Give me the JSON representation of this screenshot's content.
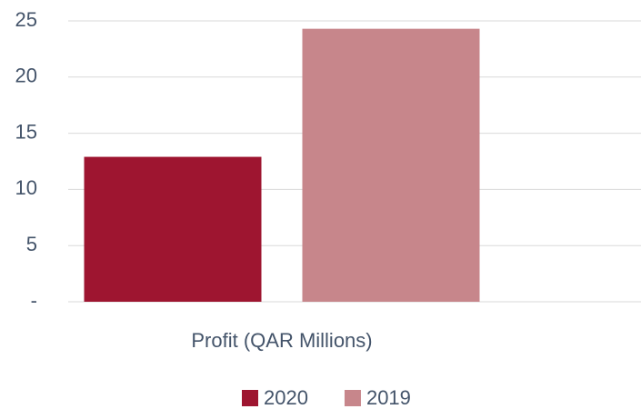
{
  "chart_data": {
    "type": "bar",
    "categories": [
      "Profit (QAR Millions)"
    ],
    "series": [
      {
        "name": "2020",
        "color": "#9e1530",
        "values": [
          12.9
        ]
      },
      {
        "name": "2019",
        "color": "#c7868b",
        "values": [
          24.3
        ]
      }
    ],
    "ylim": [
      0,
      25
    ],
    "yticks": [
      {
        "value": 0,
        "label": "-"
      },
      5,
      10,
      15,
      20,
      25
    ],
    "grid": true,
    "legend": "bottom"
  }
}
